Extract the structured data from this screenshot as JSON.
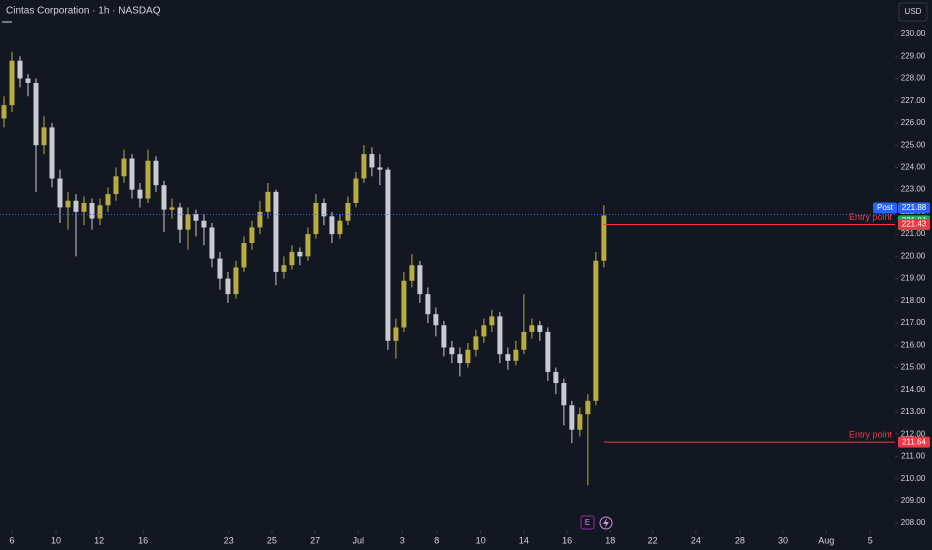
{
  "chart_data": {
    "type": "candlestick",
    "title": "Cintas Corporation · 1h · NASDAQ",
    "currency": "USD",
    "up_color": "#b9ab3f",
    "down_color": "#c8cad2",
    "xlim": [
      -0.5,
      111.4
    ],
    "ylim": [
      207.69,
      231.53
    ],
    "xticks": [
      {
        "value": 1,
        "label": "6"
      },
      {
        "value": 6.5,
        "label": "10"
      },
      {
        "value": 11.9,
        "label": "12"
      },
      {
        "value": 17.4,
        "label": "16"
      },
      {
        "value": 28.1,
        "label": "23"
      },
      {
        "value": 33.5,
        "label": "25"
      },
      {
        "value": 38.9,
        "label": "27"
      },
      {
        "value": 44.3,
        "label": "Jul"
      },
      {
        "value": 49.8,
        "label": "3"
      },
      {
        "value": 54.1,
        "label": "8"
      },
      {
        "value": 59.6,
        "label": "10"
      },
      {
        "value": 65,
        "label": "14"
      },
      {
        "value": 70.4,
        "label": "16"
      },
      {
        "value": 75.8,
        "label": "18"
      },
      {
        "value": 81.1,
        "label": "22"
      },
      {
        "value": 86.5,
        "label": "24"
      },
      {
        "value": 92,
        "label": "28"
      },
      {
        "value": 97.4,
        "label": "30"
      },
      {
        "value": 102.8,
        "label": "Aug"
      },
      {
        "value": 108.3,
        "label": "5"
      }
    ],
    "yticks": [
      {
        "value": 208,
        "label": "208.00"
      },
      {
        "value": 209,
        "label": "209.00"
      },
      {
        "value": 210,
        "label": "210.00"
      },
      {
        "value": 211,
        "label": "211.00"
      },
      {
        "value": 212,
        "label": "212.00"
      },
      {
        "value": 213,
        "label": "213.00"
      },
      {
        "value": 214,
        "label": "214.00"
      },
      {
        "value": 215,
        "label": "215.00"
      },
      {
        "value": 216,
        "label": "216.00"
      },
      {
        "value": 217,
        "label": "217.00"
      },
      {
        "value": 218,
        "label": "218.00"
      },
      {
        "value": 219,
        "label": "219.00"
      },
      {
        "value": 220,
        "label": "220.00"
      },
      {
        "value": 221,
        "label": "221.00"
      },
      {
        "value": 222,
        "label": "222.00"
      },
      {
        "value": 223,
        "label": "223.00"
      },
      {
        "value": 224,
        "label": "224.00"
      },
      {
        "value": 225,
        "label": "225.00"
      },
      {
        "value": 226,
        "label": "226.00"
      },
      {
        "value": 227,
        "label": "227.00"
      },
      {
        "value": 228,
        "label": "228.00"
      },
      {
        "value": 229,
        "label": "229.00"
      },
      {
        "value": 230,
        "label": "230.00"
      }
    ],
    "open": [
      226.2,
      226.8,
      228.8,
      228,
      227.8,
      225,
      225.8,
      223.5,
      222.2,
      222.5,
      222,
      222.4,
      221.7,
      222.3,
      222.8,
      223.6,
      224.4,
      223,
      222.6,
      224.3,
      223.2,
      222.1,
      222.2,
      221.2,
      221.9,
      221.6,
      221.3,
      219.9,
      219,
      218.3,
      219.5,
      220.6,
      221.3,
      222,
      222.9,
      219.3,
      219.6,
      220.2,
      220,
      221,
      222.4,
      221.8,
      221,
      221.6,
      222.4,
      223.5,
      224.6,
      224,
      223.9,
      216.2,
      216.8,
      218.9,
      219.6,
      218.3,
      217.4,
      216.9,
      215.9,
      215.6,
      215.2,
      215.8,
      216.4,
      216.9,
      217.3,
      215.6,
      215.3,
      215.8,
      216.6,
      216.9,
      216.6,
      214.8,
      214.3,
      213.3,
      212.2,
      212.9,
      213.5,
      219.8
    ],
    "high": [
      227.2,
      229.2,
      229,
      228.2,
      228,
      226.3,
      226,
      223.9,
      222.9,
      222.8,
      222.7,
      222.6,
      222.6,
      223.1,
      224,
      224.8,
      224.6,
      223.3,
      224.8,
      224.5,
      223.4,
      222.6,
      222.4,
      222.2,
      222.1,
      221.9,
      221.5,
      220.2,
      219.3,
      219.8,
      220.9,
      221.6,
      222.5,
      223.3,
      223,
      220,
      220.5,
      220.4,
      221.3,
      222.8,
      222.6,
      222,
      221.9,
      222.7,
      223.8,
      225,
      224.9,
      224.6,
      224,
      217.2,
      219.3,
      220.1,
      219.8,
      218.6,
      217.7,
      217.1,
      216.2,
      215.9,
      216.1,
      216.7,
      217.2,
      217.6,
      217.5,
      215.9,
      216.2,
      218.3,
      217.2,
      217.1,
      216.8,
      215,
      214.5,
      213.5,
      213.2,
      213.8,
      220.2,
      222.3
    ],
    "low": [
      225.8,
      226.5,
      227.6,
      227.2,
      222.9,
      224.6,
      223.1,
      221.5,
      221.2,
      220,
      221.4,
      221.2,
      221.4,
      222,
      222.5,
      223.3,
      222.6,
      222.2,
      222.4,
      222.9,
      221.1,
      221.7,
      220.6,
      220.3,
      220.9,
      220.5,
      219.5,
      218.5,
      217.9,
      218.1,
      219.3,
      220.3,
      221,
      221.7,
      218.7,
      219,
      219.4,
      219.6,
      219.8,
      220.8,
      221.4,
      220.6,
      220.8,
      221.4,
      222.2,
      223.3,
      223.6,
      223.2,
      215.8,
      215.4,
      216.6,
      218.6,
      217.9,
      217,
      216.4,
      215.5,
      215.2,
      214.6,
      215,
      215.5,
      216.1,
      216.6,
      215.2,
      214.9,
      215.1,
      215.6,
      216.3,
      216.2,
      214.4,
      213.8,
      212.4,
      211.6,
      211.9,
      209.7,
      213.3,
      219.5
    ],
    "close": [
      226.8,
      228.8,
      228,
      227.8,
      225,
      225.8,
      223.5,
      222.2,
      222.5,
      222,
      222.4,
      221.7,
      222.3,
      222.8,
      223.6,
      224.4,
      223,
      222.6,
      224.3,
      223.2,
      222.1,
      222.2,
      221.2,
      221.9,
      221.6,
      221.3,
      219.9,
      219,
      218.3,
      219.5,
      220.6,
      221.3,
      222,
      222.9,
      219.3,
      219.6,
      220.2,
      220,
      221,
      222.4,
      221.8,
      221,
      221.6,
      222.4,
      223.5,
      224.6,
      224,
      223.9,
      216.2,
      216.8,
      218.9,
      219.6,
      218.3,
      217.4,
      216.9,
      215.9,
      215.6,
      215.2,
      215.8,
      216.4,
      216.9,
      217.3,
      215.6,
      215.3,
      215.8,
      216.6,
      216.9,
      216.6,
      214.8,
      214.3,
      213.3,
      212.2,
      212.9,
      213.5,
      219.8,
      221.84
    ],
    "post_price": {
      "label": "Post",
      "value": 221.88,
      "color": "#2962ff"
    },
    "last_price": {
      "value": 221.84,
      "color": "#22ab5b"
    },
    "levels": [
      {
        "value": 221.43,
        "label": "Entry point",
        "color": "#f23645"
      },
      {
        "value": 211.64,
        "label": "Entry point",
        "color": "#f23645"
      }
    ],
    "events": [
      "E"
    ]
  }
}
